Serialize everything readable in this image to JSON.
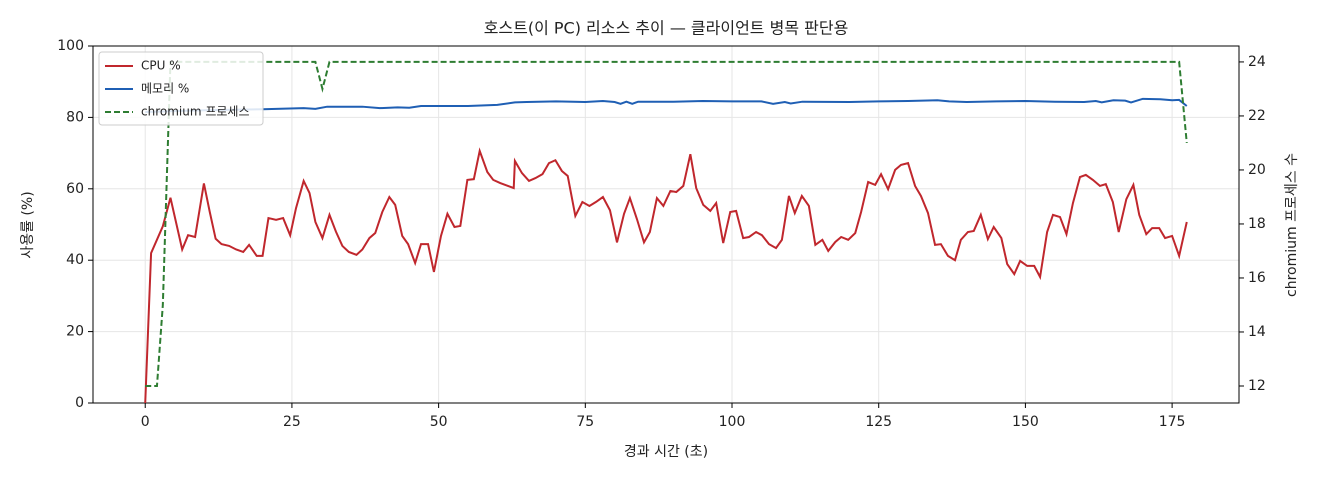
{
  "chart_data": {
    "type": "line",
    "title": "호스트(이 PC) 리소스 추이 — 클라이언트 병목 판단용",
    "xlabel": "경과 시간 (초)",
    "ylabel": "사용률 (%)",
    "y2label": "chromium 프로세스 수",
    "xlim": [
      -8.9,
      186.4
    ],
    "xticks": [
      0,
      25,
      50,
      75,
      100,
      125,
      150,
      175
    ],
    "ylim": [
      0,
      100
    ],
    "yticks": [
      0,
      20,
      40,
      60,
      80,
      100
    ],
    "y2lim": [
      11.37,
      24.59
    ],
    "y2ticks": [
      12,
      14,
      16,
      18,
      20,
      22,
      24
    ],
    "grid": true,
    "legend": "upper left",
    "series": [
      {
        "name": "CPU %",
        "color": "#c0272d",
        "axis": "y",
        "linestyle": "solid",
        "x": [
          0,
          1,
          3,
          4.3,
          6.3,
          7.3,
          8.5,
          10,
          11,
          12,
          13,
          14.3,
          15.5,
          16.7,
          17.7,
          19,
          20,
          21,
          22.3,
          23.5,
          24.7,
          25.7,
          27,
          28,
          29,
          30.2,
          31.4,
          32.5,
          33.6,
          34.7,
          36,
          37,
          38.2,
          39.2,
          40.4,
          41.6,
          42.6,
          43.8,
          44.8,
          46,
          47,
          48.2,
          49.2,
          50.4,
          51.5,
          52.7,
          53.7,
          54.9,
          56,
          57,
          58.3,
          59.3,
          60.5,
          62.8,
          63,
          64.2,
          65.4,
          66.5,
          67.7,
          68.8,
          69.9,
          71,
          72,
          73.3,
          74.5,
          75.7,
          76.8,
          78,
          79.2,
          80.4,
          81.6,
          82.6,
          83.8,
          85,
          86,
          87.2,
          88.3,
          89.5,
          90.5,
          91.7,
          92.9,
          93.9,
          95.1,
          96.3,
          97.3,
          98.5,
          99.7,
          100.7,
          101.9,
          102.9,
          104.1,
          105.1,
          106.3,
          107.5,
          108.5,
          109.7,
          110.7,
          111.9,
          113.1,
          114.2,
          115.4,
          116.4,
          117.6,
          118.6,
          119.8,
          121,
          122,
          123.2,
          124.4,
          125.4,
          126.6,
          127.8,
          128.8,
          130,
          131.2,
          132.2,
          133.4,
          134.6,
          135.6,
          136.8,
          138,
          139,
          140.2,
          141.2,
          142.4,
          143.6,
          144.6,
          145.9,
          146.9,
          148.1,
          149.1,
          150.3,
          151.5,
          152.5,
          153.7,
          154.7,
          155.9,
          157,
          158.1,
          159.3,
          160.3,
          161.5,
          162.7,
          163.7,
          164.9,
          165.9,
          167.2,
          168.4,
          169.4,
          170.6,
          171.6,
          172.8,
          173.8,
          175,
          176.2,
          177.5
        ],
        "values": [
          0,
          42,
          49.5,
          57.5,
          43,
          47,
          46.5,
          61.5,
          53.5,
          46,
          44.5,
          44,
          43,
          42.3,
          44.3,
          41.2,
          41.2,
          51.8,
          51.3,
          51.8,
          47,
          54.6,
          62.2,
          58.8,
          50.7,
          46.2,
          52.7,
          48,
          44,
          42.3,
          41.5,
          43,
          46.2,
          47.6,
          53.5,
          57.7,
          55.5,
          46.8,
          44.5,
          39.2,
          44.5,
          44.5,
          36.7,
          46.8,
          53,
          49.3,
          49.6,
          62.5,
          62.7,
          70.6,
          64.7,
          62.5,
          61.6,
          60.2,
          67.8,
          64.4,
          62.2,
          63,
          64.1,
          67.2,
          68,
          65,
          63.6,
          52.4,
          56.3,
          55.2,
          56.3,
          57.7,
          54,
          45,
          53,
          57.4,
          51.5,
          45,
          47.9,
          57.4,
          55.2,
          59.4,
          59.1,
          60.8,
          69.7,
          60.2,
          55.5,
          53.8,
          56,
          44.8,
          53.5,
          53.8,
          46.2,
          46.5,
          47.9,
          47,
          44.5,
          43.4,
          45.7,
          58,
          53.2,
          58,
          55.2,
          44.3,
          45.7,
          42.6,
          45.1,
          46.5,
          45.7,
          47.6,
          53.5,
          61.9,
          61.1,
          64.1,
          59.9,
          65.3,
          66.7,
          67.2,
          60.8,
          58,
          53.2,
          44.3,
          44.5,
          41.2,
          40,
          45.7,
          47.9,
          48.2,
          52.7,
          45.9,
          49.3,
          46.2,
          38.9,
          36.1,
          39.8,
          38.4,
          38.4,
          35.3,
          47.9,
          52.7,
          52.1,
          47.3,
          56,
          63.3,
          63.9,
          62.5,
          60.8,
          61.3,
          56.3,
          47.9,
          57.1,
          61.1,
          52.7,
          47.3,
          49,
          49,
          46.2,
          46.8,
          41.2,
          50.7
        ]
      },
      {
        "name": "메모리 %",
        "color": "#1f5fb4",
        "axis": "y",
        "linestyle": "solid",
        "x": [
          0,
          10,
          20,
          27,
          29,
          31,
          37,
          40,
          43,
          45,
          47,
          55,
          60,
          63,
          65,
          70,
          75,
          78,
          80,
          81,
          82,
          83,
          84,
          90,
          95,
          100,
          105,
          107,
          109,
          110,
          112,
          120,
          125,
          130,
          135,
          137,
          140,
          145,
          150,
          155,
          160,
          162,
          163,
          165,
          167,
          168,
          170,
          173,
          175,
          176.2,
          177.5
        ],
        "values": [
          81.5,
          82,
          82.3,
          82.6,
          82.4,
          83,
          83,
          82.6,
          82.8,
          82.7,
          83.2,
          83.2,
          83.5,
          84.2,
          84.3,
          84.5,
          84.3,
          84.6,
          84.3,
          83.8,
          84.4,
          83.8,
          84.4,
          84.4,
          84.6,
          84.5,
          84.5,
          83.8,
          84.3,
          83.9,
          84.4,
          84.3,
          84.5,
          84.6,
          84.8,
          84.5,
          84.3,
          84.5,
          84.6,
          84.4,
          84.3,
          84.6,
          84.2,
          84.8,
          84.7,
          84.2,
          85.2,
          85.1,
          84.8,
          84.9,
          83.2
        ]
      },
      {
        "name": "chromium 프로세스",
        "color": "#2e7d32",
        "axis": "y2",
        "linestyle": "dashed",
        "x": [
          0,
          2,
          3,
          4.3,
          29,
          30.2,
          31.4,
          176.2,
          177.5
        ],
        "values": [
          12,
          12,
          15,
          24,
          24,
          23,
          24,
          24,
          21
        ]
      }
    ]
  }
}
